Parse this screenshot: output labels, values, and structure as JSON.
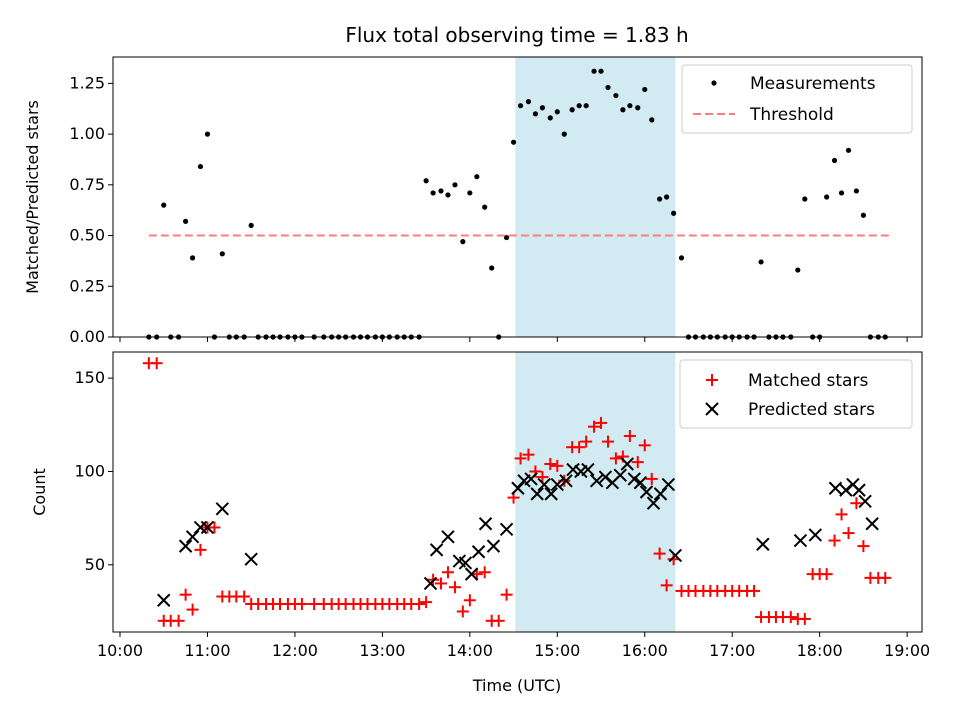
{
  "chart_data": {
    "type": "scatter",
    "title": "Flux total observing time = 1.83 h",
    "xlabel": "Time (UTC)",
    "x_unit": "hours UTC",
    "xlim": [
      9.92,
      19.17
    ],
    "xticks": [
      10,
      11,
      12,
      13,
      14,
      15,
      16,
      17,
      18,
      19
    ],
    "xtick_labels": [
      "10:00",
      "11:00",
      "12:00",
      "13:00",
      "14:00",
      "15:00",
      "16:00",
      "17:00",
      "18:00",
      "19:00"
    ],
    "shaded_interval": [
      14.52,
      16.35
    ],
    "shade_color": "#add8e6",
    "panels": [
      {
        "ylabel": "Matched/Predicted stars",
        "ylim": [
          0,
          1.38
        ],
        "yticks": [
          0,
          0.25,
          0.5,
          0.75,
          1.0,
          1.25
        ],
        "ytick_labels": [
          "0.00",
          "0.25",
          "0.50",
          "0.75",
          "1.00",
          "1.25"
        ],
        "legend_position": "upper right",
        "series": [
          {
            "name": "Measurements",
            "marker": "dot",
            "color": "#000000",
            "x": [
              10.33,
              10.42,
              10.5,
              10.58,
              10.67,
              10.75,
              10.83,
              10.92,
              11.0,
              11.08,
              11.17,
              11.25,
              11.33,
              11.42,
              11.5,
              11.58,
              11.67,
              11.75,
              11.83,
              11.92,
              12.0,
              12.08,
              12.22,
              12.33,
              12.42,
              12.5,
              12.58,
              12.67,
              12.75,
              12.83,
              12.92,
              13.0,
              13.08,
              13.17,
              13.25,
              13.33,
              13.42,
              13.5,
              13.58,
              13.67,
              13.75,
              13.83,
              13.92,
              14.0,
              14.08,
              14.17,
              14.25,
              14.33,
              14.42,
              14.5,
              14.58,
              14.67,
              14.75,
              14.83,
              14.92,
              15.0,
              15.08,
              15.17,
              15.25,
              15.33,
              15.42,
              15.5,
              15.58,
              15.67,
              15.75,
              15.83,
              15.92,
              16.0,
              16.08,
              16.17,
              16.25,
              16.33,
              16.42,
              16.5,
              16.58,
              16.67,
              16.75,
              16.83,
              16.92,
              17.0,
              17.08,
              17.17,
              17.25,
              17.33,
              17.42,
              17.5,
              17.58,
              17.67,
              17.75,
              17.83,
              17.92,
              18.0,
              18.08,
              18.17,
              18.25,
              18.33,
              18.42,
              18.5,
              18.58,
              18.67,
              18.75
            ],
            "y": [
              0,
              0,
              0.65,
              0,
              0,
              0.57,
              0.39,
              0.84,
              1.0,
              0,
              0.41,
              0,
              0,
              0,
              0.55,
              0,
              0,
              0,
              0,
              0,
              0,
              0,
              0,
              0,
              0,
              0,
              0,
              0,
              0,
              0,
              0,
              0,
              0,
              0,
              0,
              0,
              0,
              0.77,
              0.71,
              0.72,
              0.7,
              0.75,
              0.47,
              0.71,
              0.79,
              0.64,
              0.34,
              0,
              0.49,
              0.96,
              1.14,
              1.16,
              1.1,
              1.13,
              1.08,
              1.11,
              1.0,
              1.12,
              1.14,
              1.14,
              1.31,
              1.31,
              1.23,
              1.19,
              1.12,
              1.14,
              1.13,
              1.22,
              1.07,
              0.68,
              0.69,
              0.61,
              0.39,
              0,
              0,
              0,
              0,
              0,
              0,
              0,
              0,
              0,
              0,
              0.37,
              0,
              0,
              0,
              0,
              0.33,
              0.68,
              0,
              0,
              0.69,
              0.87,
              0.71,
              0.92,
              0.72,
              0.6,
              0,
              0,
              0
            ]
          },
          {
            "name": "Threshold",
            "marker": "dashed-line",
            "color": "#ff7f7f",
            "x": [
              10.33,
              18.8
            ],
            "y": [
              0.5,
              0.5
            ]
          }
        ]
      },
      {
        "ylabel": "Count",
        "ylim": [
          14,
          164
        ],
        "yticks": [
          50,
          100,
          150
        ],
        "ytick_labels": [
          "50",
          "100",
          "150"
        ],
        "legend_position": "upper right",
        "series": [
          {
            "name": "Matched stars",
            "marker": "plus",
            "color": "#ff0000",
            "x": [
              10.33,
              10.42,
              10.5,
              10.58,
              10.67,
              10.75,
              10.83,
              10.92,
              11.0,
              11.08,
              11.17,
              11.25,
              11.33,
              11.42,
              11.5,
              11.58,
              11.67,
              11.75,
              11.83,
              11.92,
              12.0,
              12.08,
              12.22,
              12.33,
              12.42,
              12.5,
              12.58,
              12.67,
              12.75,
              12.83,
              12.92,
              13.0,
              13.08,
              13.17,
              13.25,
              13.33,
              13.42,
              13.5,
              13.58,
              13.67,
              13.75,
              13.83,
              13.92,
              14.0,
              14.08,
              14.17,
              14.25,
              14.33,
              14.42,
              14.5,
              14.58,
              14.67,
              14.75,
              14.83,
              14.92,
              15.0,
              15.08,
              15.17,
              15.25,
              15.33,
              15.42,
              15.5,
              15.58,
              15.67,
              15.75,
              15.83,
              15.92,
              16.0,
              16.08,
              16.17,
              16.25,
              16.33,
              16.42,
              16.5,
              16.58,
              16.67,
              16.75,
              16.83,
              16.92,
              17.0,
              17.08,
              17.17,
              17.25,
              17.33,
              17.42,
              17.5,
              17.58,
              17.67,
              17.75,
              17.83,
              17.92,
              18.0,
              18.08,
              18.17,
              18.25,
              18.33,
              18.42,
              18.5,
              18.58,
              18.67,
              18.75
            ],
            "y": [
              158,
              158,
              20,
              20,
              20,
              34,
              26,
              58,
              70,
              70,
              33,
              33,
              33,
              33,
              29,
              29,
              29,
              29,
              29,
              29,
              29,
              29,
              29,
              29,
              29,
              29,
              29,
              29,
              29,
              29,
              29,
              29,
              29,
              29,
              29,
              29,
              29,
              30,
              42,
              40,
              46,
              38,
              25,
              31,
              45,
              46,
              20,
              20,
              34,
              86,
              107,
              109,
              100,
              97,
              104,
              103,
              95,
              113,
              113,
              116,
              124,
              126,
              116,
              107,
              108,
              119,
              105,
              114,
              96,
              56,
              39,
              53,
              36,
              36,
              36,
              36,
              36,
              36,
              36,
              36,
              36,
              36,
              36,
              22,
              22,
              22,
              22,
              22,
              21,
              21,
              45,
              45,
              45,
              63,
              77,
              67,
              83,
              60,
              43,
              43,
              43
            ]
          },
          {
            "name": "Predicted stars",
            "marker": "x",
            "color": "#000000",
            "x": [
              10.5,
              10.75,
              10.83,
              10.92,
              11.0,
              11.17,
              11.5,
              13.55,
              13.62,
              13.75,
              13.88,
              13.95,
              14.02,
              14.1,
              14.18,
              14.27,
              14.42,
              14.55,
              14.62,
              14.7,
              14.77,
              14.85,
              14.93,
              15.0,
              15.1,
              15.18,
              15.27,
              15.35,
              15.45,
              15.55,
              15.63,
              15.72,
              15.8,
              15.88,
              15.95,
              16.02,
              16.1,
              16.18,
              16.27,
              16.35,
              17.35,
              17.78,
              17.95,
              18.18,
              18.3,
              18.38,
              18.45,
              18.52,
              18.6
            ],
            "y": [
              31,
              60,
              65,
              70,
              70,
              80,
              53,
              40,
              58,
              65,
              52,
              51,
              45,
              57,
              72,
              60,
              69,
              91,
              95,
              96,
              88,
              93,
              88,
              93,
              95,
              101,
              100,
              101,
              95,
              97,
              94,
              98,
              104,
              96,
              94,
              89,
              83,
              88,
              93,
              55,
              61,
              63,
              66,
              91,
              90,
              93,
              90,
              84,
              72
            ]
          }
        ]
      }
    ]
  }
}
